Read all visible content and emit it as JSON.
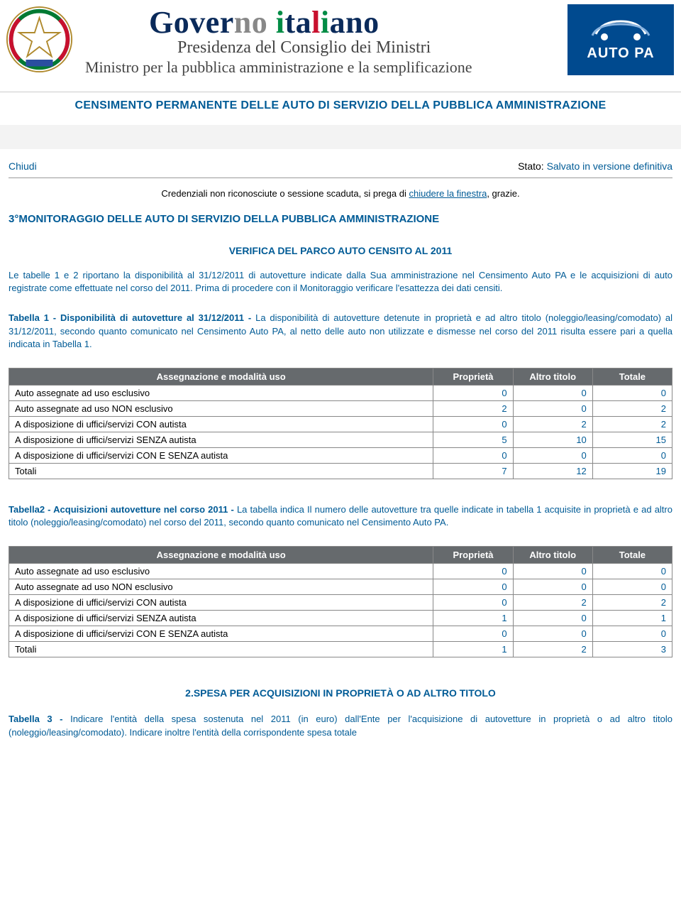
{
  "banner": {
    "gov_prefix": "Gover",
    "gov_mid": "no",
    "gov_space": " ",
    "gov_i": "i",
    "gov_t": "ta",
    "gov_l": "l",
    "gov_i2": "i",
    "gov_suffix": "ano",
    "script1": "Presidenza del Consiglio dei Ministri",
    "script2": "Ministro per la pubblica amministrazione e la semplificazione",
    "autopa_label": "AUTO PA",
    "census": "CENSIMENTO PERMANENTE DELLE AUTO DI SERVIZIO DELLA PUBBLICA AMMINISTRAZIONE"
  },
  "top": {
    "close": "Chiudi",
    "state_label": "Stato: ",
    "state_value": "Salvato in versione definitiva"
  },
  "cred": {
    "prefix": "Credenziali non riconosciute o sessione scaduta, si prega di ",
    "link": "chiudere la finestra",
    "suffix": ", grazie."
  },
  "title_main": "3°MONITORAGGIO DELLE AUTO DI SERVIZIO DELLA PUBBLICA AMMINISTRAZIONE",
  "verify_head": "VERIFICA DEL PARCO AUTO CENSITO AL 2011",
  "verify_para": "Le tabelle 1 e 2 riportano la disponibilità al 31/12/2011 di autovetture indicate dalla Sua amministrazione nel Censimento Auto PA e le acquisizioni di auto registrate come effettuate nel corso del 2011. Prima di procedere con il Monitoraggio verificare l'esattezza dei dati censiti.",
  "tab1": {
    "caption_bold": "Tabella 1 - Disponibilità di autovetture al 31/12/2011 - ",
    "caption_rest": "La disponibilità di autovetture detenute in proprietà e ad altro titolo (noleggio/leasing/comodato) al 31/12/2011, secondo quanto comunicato nel Censimento Auto PA, al netto delle auto non utilizzate e dismesse nel corso del 2011 risulta essere pari a quella indicata in Tabella 1.",
    "headers": [
      "Assegnazione e modalità uso",
      "Proprietà",
      "Altro titolo",
      "Totale"
    ],
    "rows": [
      {
        "label": "Auto assegnate ad uso esclusivo",
        "v": [
          "0",
          "0",
          "0"
        ]
      },
      {
        "label": "Auto assegnate ad uso NON esclusivo",
        "v": [
          "2",
          "0",
          "2"
        ]
      },
      {
        "label": "A disposizione di uffici/servizi CON autista",
        "v": [
          "0",
          "2",
          "2"
        ]
      },
      {
        "label": "A disposizione di uffici/servizi SENZA autista",
        "v": [
          "5",
          "10",
          "15"
        ]
      },
      {
        "label": "A disposizione di uffici/servizi CON E SENZA autista",
        "v": [
          "0",
          "0",
          "0"
        ]
      },
      {
        "label": "Totali",
        "v": [
          "7",
          "12",
          "19"
        ]
      }
    ]
  },
  "tab2": {
    "caption_bold": "Tabella2 - Acquisizioni autovetture nel corso 2011 - ",
    "caption_rest": "La tabella indica Il numero delle autovetture tra quelle indicate in tabella 1 acquisite in proprietà e ad altro titolo (noleggio/leasing/comodato) nel corso del 2011, secondo quanto comunicato nel Censimento Auto PA.",
    "headers": [
      "Assegnazione e modalità uso",
      "Proprietà",
      "Altro titolo",
      "Totale"
    ],
    "rows": [
      {
        "label": "Auto assegnate ad uso esclusivo",
        "v": [
          "0",
          "0",
          "0"
        ]
      },
      {
        "label": "Auto assegnate ad uso NON esclusivo",
        "v": [
          "0",
          "0",
          "0"
        ]
      },
      {
        "label": "A disposizione di uffici/servizi CON autista",
        "v": [
          "0",
          "2",
          "2"
        ]
      },
      {
        "label": "A disposizione di uffici/servizi SENZA autista",
        "v": [
          "1",
          "0",
          "1"
        ]
      },
      {
        "label": "A disposizione di uffici/servizi CON E SENZA autista",
        "v": [
          "0",
          "0",
          "0"
        ]
      },
      {
        "label": "Totali",
        "v": [
          "1",
          "2",
          "3"
        ]
      }
    ]
  },
  "section2": {
    "head": "2.SPESA PER ACQUISIZIONI IN PROPRIETÀ O AD ALTRO TITOLO",
    "tab3_bold": "Tabella 3 - ",
    "tab3_rest": "Indicare l'entità della spesa sostenuta nel 2011 (in euro) dall'Ente per l'acquisizione di autovetture in proprietà o ad altro titolo (noleggio/leasing/comodato). Indicare inoltre l'entità della corrispondente spesa totale"
  },
  "colors": {
    "link_blue": "#005b96",
    "header_gray": "#666a6d"
  }
}
